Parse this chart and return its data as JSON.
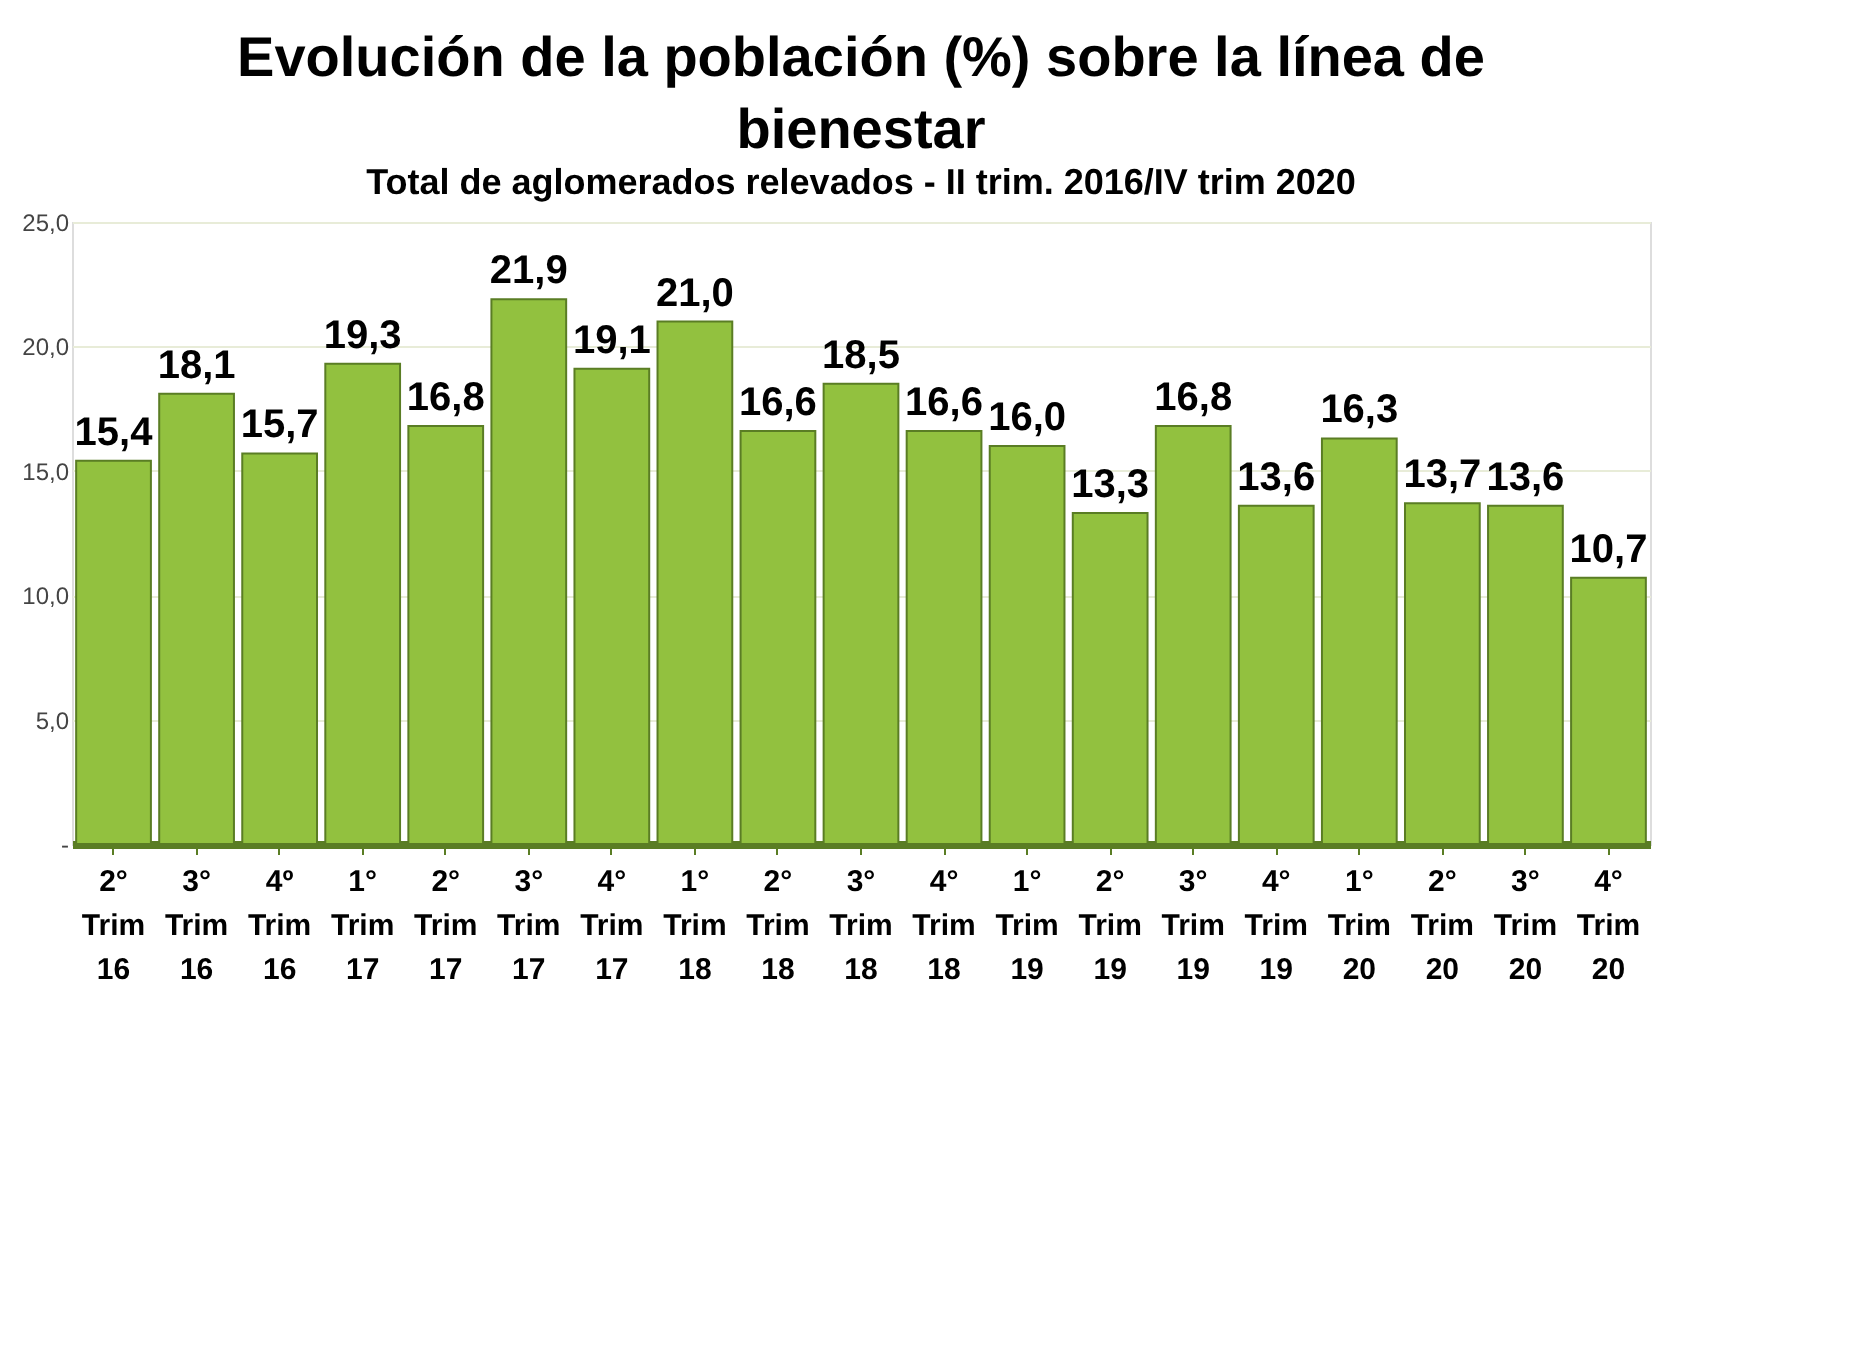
{
  "chart_data": {
    "type": "bar",
    "title": "Evolución de la población (%) sobre la línea de bienestar",
    "subtitle": "Total de aglomerados relevados - II trim. 2016/IV trim 2020",
    "categories": [
      "2° Trim 16",
      "3° Trim 16",
      "4º Trim 16",
      "1° Trim 17",
      "2° Trim 17",
      "3° Trim 17",
      "4° Trim 17",
      "1° Trim 18",
      "2° Trim 18",
      "3° Trim 18",
      "4° Trim 18",
      "1° Trim 19",
      "2° Trim 19",
      "3° Trim 19",
      "4° Trim 19",
      "1° Trim 20",
      "2° Trim 20",
      "3° Trim 20",
      "4° Trim 20"
    ],
    "values": [
      15.4,
      18.1,
      15.7,
      19.3,
      16.8,
      21.9,
      19.1,
      21.0,
      16.6,
      18.5,
      16.6,
      16.0,
      13.3,
      16.8,
      13.6,
      16.3,
      13.7,
      13.6,
      10.7
    ],
    "value_labels": [
      "15,4",
      "18,1",
      "15,7",
      "19,3",
      "16,8",
      "21,9",
      "19,1",
      "21,0",
      "16,6",
      "18,5",
      "16,6",
      "16,0",
      "13,3",
      "16,8",
      "13,6",
      "16,3",
      "13,7",
      "13,6",
      "10,7"
    ],
    "color": "#92c13f",
    "ylim": [
      0,
      25
    ],
    "yticks": [
      {
        "value": 0,
        "label": "-"
      },
      {
        "value": 5,
        "label": "5,0"
      },
      {
        "value": 10,
        "label": "10,0"
      },
      {
        "value": 15,
        "label": "15,0"
      },
      {
        "value": 20,
        "label": "20,0"
      },
      {
        "value": 25,
        "label": "25,0"
      }
    ],
    "grid": "y"
  }
}
